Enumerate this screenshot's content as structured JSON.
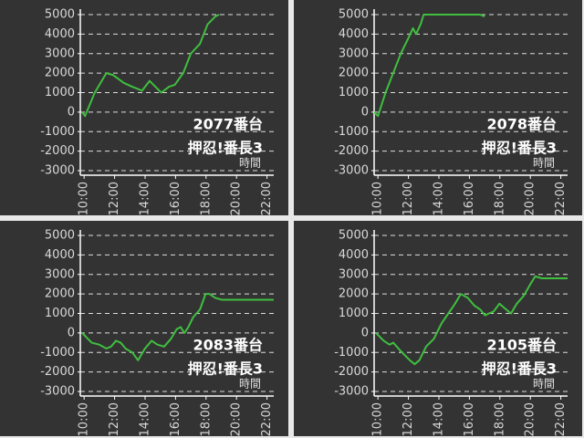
{
  "chart_data": [
    {
      "type": "line",
      "color": "#3fbf3f",
      "annotations": [
        "2077番台",
        "押忍!番長3"
      ],
      "x_label": "時間",
      "x": [
        9.87,
        10.06,
        10.7,
        11.46,
        11.9,
        12.6,
        13.16,
        13.8,
        14.3,
        14.68,
        15.06,
        15.57,
        15.95,
        16.5,
        17.0,
        17.6,
        18.1,
        18.6,
        18.86
      ],
      "values": [
        0,
        -200,
        1000,
        2000,
        1900,
        1500,
        1300,
        1100,
        1600,
        1300,
        1000,
        1300,
        1400,
        2000,
        3000,
        3500,
        4500,
        4900,
        5000
      ],
      "xlim": [
        9.75,
        23.4
      ],
      "ylim": [
        -3000,
        5000
      ],
      "xticks": [
        {
          "value": 10,
          "label": "10:00"
        },
        {
          "value": 12,
          "label": "12:00"
        },
        {
          "value": 14,
          "label": "14:00"
        },
        {
          "value": 16,
          "label": "16:00"
        },
        {
          "value": 18,
          "label": "18:00"
        },
        {
          "value": 20,
          "label": "20:00"
        },
        {
          "value": 22,
          "label": "22:00"
        }
      ],
      "yticks": [
        -3000,
        -2000,
        -1000,
        0,
        1000,
        2000,
        3000,
        4000,
        5000
      ],
      "grid": true
    },
    {
      "type": "line",
      "color": "#3fbf3f",
      "annotations": [
        "2078番台",
        "押忍!番長3"
      ],
      "x_label": "時間",
      "x": [
        9.75,
        10.0,
        10.5,
        11.0,
        11.5,
        12.0,
        12.3,
        12.5,
        12.8,
        13.0,
        14.3,
        15.9,
        16.7,
        17.0
      ],
      "values": [
        0,
        -200,
        1000,
        2000,
        3000,
        3800,
        4300,
        4000,
        4500,
        5000,
        5000,
        5000,
        5000,
        4900
      ],
      "xlim": [
        9.75,
        23.4
      ],
      "ylim": [
        -3000,
        5000
      ],
      "xticks": [
        {
          "value": 10,
          "label": "10:00"
        },
        {
          "value": 12,
          "label": "12:00"
        },
        {
          "value": 14,
          "label": "14:00"
        },
        {
          "value": 16,
          "label": "16:00"
        },
        {
          "value": 18,
          "label": "18:00"
        },
        {
          "value": 20,
          "label": "20:00"
        },
        {
          "value": 22,
          "label": "22:00"
        }
      ],
      "yticks": [
        -3000,
        -2000,
        -1000,
        0,
        1000,
        2000,
        3000,
        4000,
        5000
      ],
      "grid": true
    },
    {
      "type": "line",
      "color": "#3fbf3f",
      "annotations": [
        "2083番台",
        "押忍!番長3"
      ],
      "x_label": "時間",
      "x": [
        9.87,
        10.5,
        11.0,
        11.46,
        11.77,
        12.09,
        12.4,
        12.72,
        13.16,
        13.54,
        13.99,
        14.43,
        14.81,
        15.25,
        15.7,
        16.08,
        16.33,
        16.58,
        16.84,
        17.15,
        17.6,
        17.97,
        18.23,
        18.6,
        19.05,
        22.85
      ],
      "values": [
        0,
        -500,
        -600,
        -800,
        -700,
        -400,
        -500,
        -800,
        -1000,
        -1400,
        -800,
        -400,
        -600,
        -700,
        -300,
        200,
        300,
        0,
        300,
        800,
        1200,
        2000,
        2000,
        1800,
        1700,
        1700
      ],
      "xlim": [
        9.75,
        23.4
      ],
      "ylim": [
        -3000,
        5000
      ],
      "xticks": [
        {
          "value": 10,
          "label": "10:00"
        },
        {
          "value": 12,
          "label": "12:00"
        },
        {
          "value": 14,
          "label": "14:00"
        },
        {
          "value": 16,
          "label": "16:00"
        },
        {
          "value": 18,
          "label": "18:00"
        },
        {
          "value": 20,
          "label": "20:00"
        },
        {
          "value": 22,
          "label": "22:00"
        }
      ],
      "yticks": [
        -3000,
        -2000,
        -1000,
        0,
        1000,
        2000,
        3000,
        4000,
        5000
      ],
      "grid": true
    },
    {
      "type": "line",
      "color": "#3fbf3f",
      "annotations": [
        "2105番台",
        "押忍!番長3"
      ],
      "x_label": "時間",
      "x": [
        9.87,
        10.38,
        10.76,
        11.01,
        11.46,
        12.09,
        12.41,
        12.72,
        13.16,
        13.67,
        14.18,
        14.62,
        15.06,
        15.44,
        15.89,
        16.33,
        16.71,
        17.03,
        17.28,
        17.59,
        17.97,
        18.42,
        18.73,
        19.11,
        19.56,
        20.0,
        20.32,
        20.76,
        23.16
      ],
      "values": [
        0,
        -400,
        -600,
        -500,
        -900,
        -1400,
        -1600,
        -1400,
        -700,
        -300,
        500,
        1000,
        1500,
        2000,
        1800,
        1400,
        1200,
        900,
        1000,
        1100,
        1500,
        1200,
        1000,
        1500,
        1900,
        2500,
        2900,
        2800,
        2800
      ],
      "xlim": [
        9.75,
        23.4
      ],
      "ylim": [
        -3000,
        5000
      ],
      "xticks": [
        {
          "value": 10,
          "label": "10:00"
        },
        {
          "value": 12,
          "label": "12:00"
        },
        {
          "value": 14,
          "label": "14:00"
        },
        {
          "value": 16,
          "label": "16:00"
        },
        {
          "value": 18,
          "label": "18:00"
        },
        {
          "value": 20,
          "label": "20:00"
        },
        {
          "value": 22,
          "label": "22:00"
        }
      ],
      "yticks": [
        -3000,
        -2000,
        -1000,
        0,
        1000,
        2000,
        3000,
        4000,
        5000
      ],
      "grid": true
    }
  ]
}
